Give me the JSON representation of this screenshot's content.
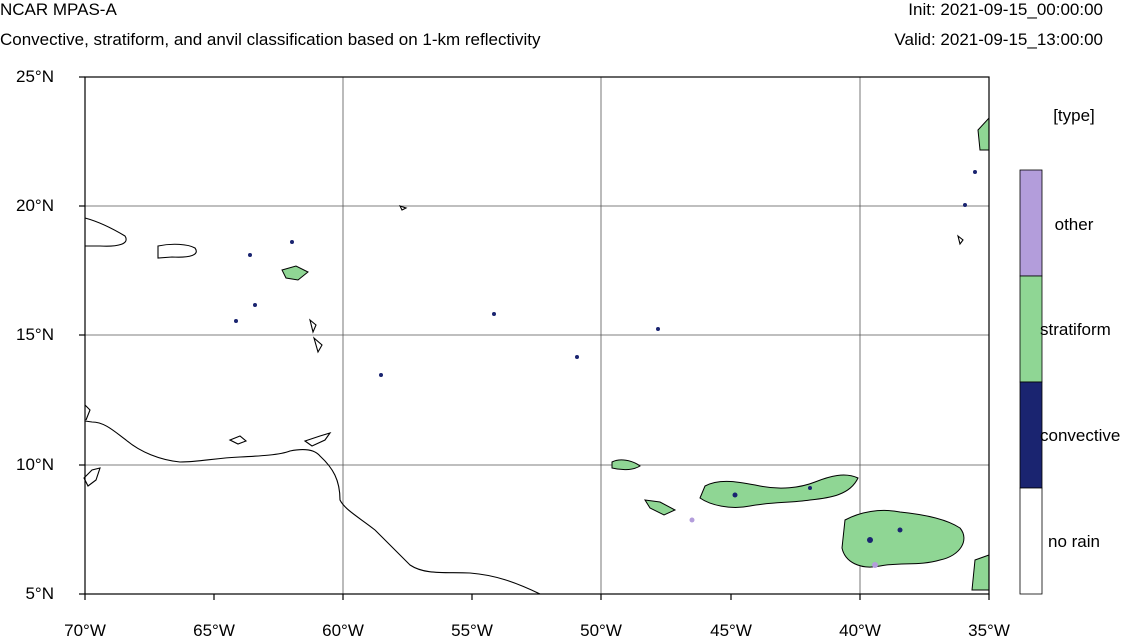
{
  "header": {
    "title": "NCAR MPAS-A",
    "subtitle": "Convective, stratiform, and anvil classification based on 1-km reflectivity",
    "init": "Init: 2021-09-15_00:00:00",
    "valid": "Valid: 2021-09-15_13:00:00"
  },
  "map": {
    "lat_labels": [
      "25°N",
      "20°N",
      "15°N",
      "10°N",
      "5°N"
    ],
    "lon_labels": [
      "70°W",
      "65°W",
      "60°W",
      "55°W",
      "50°W",
      "45°W",
      "40°W",
      "35°W"
    ],
    "lat_range": [
      5,
      25
    ],
    "lon_range": [
      -70,
      -35
    ]
  },
  "legend": {
    "title": "[type]",
    "items": [
      {
        "label": "other",
        "color": "#b39ddb"
      },
      {
        "label": "stratiform",
        "color": "#8fd694"
      },
      {
        "label": "convective",
        "color": "#1a2470"
      },
      {
        "label": "no rain",
        "color": "#ffffff"
      }
    ]
  }
}
